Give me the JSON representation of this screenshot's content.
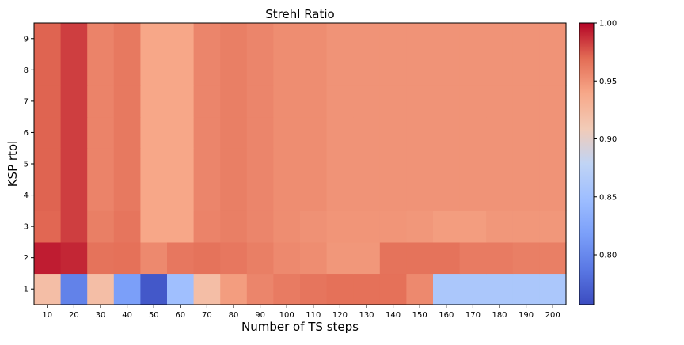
{
  "chart_data": {
    "type": "heatmap",
    "title": "Strehl Ratio",
    "xlabel": "Number of TS steps",
    "ylabel": "KSP rtol",
    "x_categories": [
      "10",
      "20",
      "30",
      "40",
      "50",
      "60",
      "70",
      "80",
      "90",
      "100",
      "110",
      "120",
      "130",
      "140",
      "150",
      "160",
      "170",
      "180",
      "190",
      "200"
    ],
    "y_categories": [
      "1",
      "2",
      "3",
      "4",
      "5",
      "6",
      "7",
      "8",
      "9"
    ],
    "colormap": "coolwarm",
    "vmin": 0.757,
    "vmax": 1.0,
    "colorbar_ticks": [
      "0.80",
      "0.85",
      "0.90",
      "0.95",
      "1.00"
    ],
    "colorbar_tick_values": [
      0.8,
      0.85,
      0.9,
      0.95,
      1.0
    ],
    "rows": [
      [
        0.92,
        0.795,
        0.92,
        0.818,
        0.765,
        0.85,
        0.92,
        0.945,
        0.957,
        0.962,
        0.965,
        0.967,
        0.967,
        0.967,
        0.955,
        0.86,
        0.86,
        0.86,
        0.86,
        0.86
      ],
      [
        0.993,
        0.99,
        0.966,
        0.967,
        0.955,
        0.964,
        0.966,
        0.964,
        0.96,
        0.955,
        0.953,
        0.948,
        0.948,
        0.966,
        0.966,
        0.966,
        0.962,
        0.962,
        0.96,
        0.96
      ],
      [
        0.971,
        0.983,
        0.96,
        0.965,
        0.94,
        0.94,
        0.958,
        0.96,
        0.957,
        0.953,
        0.951,
        0.949,
        0.949,
        0.949,
        0.948,
        0.945,
        0.945,
        0.948,
        0.948,
        0.948
      ],
      [
        0.972,
        0.983,
        0.958,
        0.963,
        0.94,
        0.94,
        0.957,
        0.96,
        0.957,
        0.953,
        0.953,
        0.95,
        0.95,
        0.95,
        0.95,
        0.95,
        0.95,
        0.95,
        0.95,
        0.95
      ],
      [
        0.972,
        0.983,
        0.958,
        0.963,
        0.94,
        0.94,
        0.957,
        0.96,
        0.957,
        0.953,
        0.953,
        0.95,
        0.95,
        0.95,
        0.95,
        0.95,
        0.95,
        0.95,
        0.95,
        0.95
      ],
      [
        0.972,
        0.983,
        0.958,
        0.963,
        0.94,
        0.94,
        0.957,
        0.96,
        0.957,
        0.953,
        0.953,
        0.95,
        0.95,
        0.95,
        0.95,
        0.95,
        0.95,
        0.95,
        0.95,
        0.95
      ],
      [
        0.972,
        0.983,
        0.958,
        0.963,
        0.94,
        0.94,
        0.957,
        0.96,
        0.957,
        0.953,
        0.953,
        0.95,
        0.95,
        0.95,
        0.95,
        0.95,
        0.95,
        0.95,
        0.95,
        0.95
      ],
      [
        0.972,
        0.983,
        0.958,
        0.963,
        0.94,
        0.94,
        0.957,
        0.96,
        0.957,
        0.953,
        0.953,
        0.95,
        0.95,
        0.95,
        0.95,
        0.95,
        0.95,
        0.95,
        0.95,
        0.95
      ],
      [
        0.972,
        0.983,
        0.958,
        0.963,
        0.94,
        0.94,
        0.957,
        0.96,
        0.957,
        0.953,
        0.953,
        0.95,
        0.95,
        0.95,
        0.95,
        0.95,
        0.95,
        0.95,
        0.95,
        0.95
      ]
    ]
  }
}
